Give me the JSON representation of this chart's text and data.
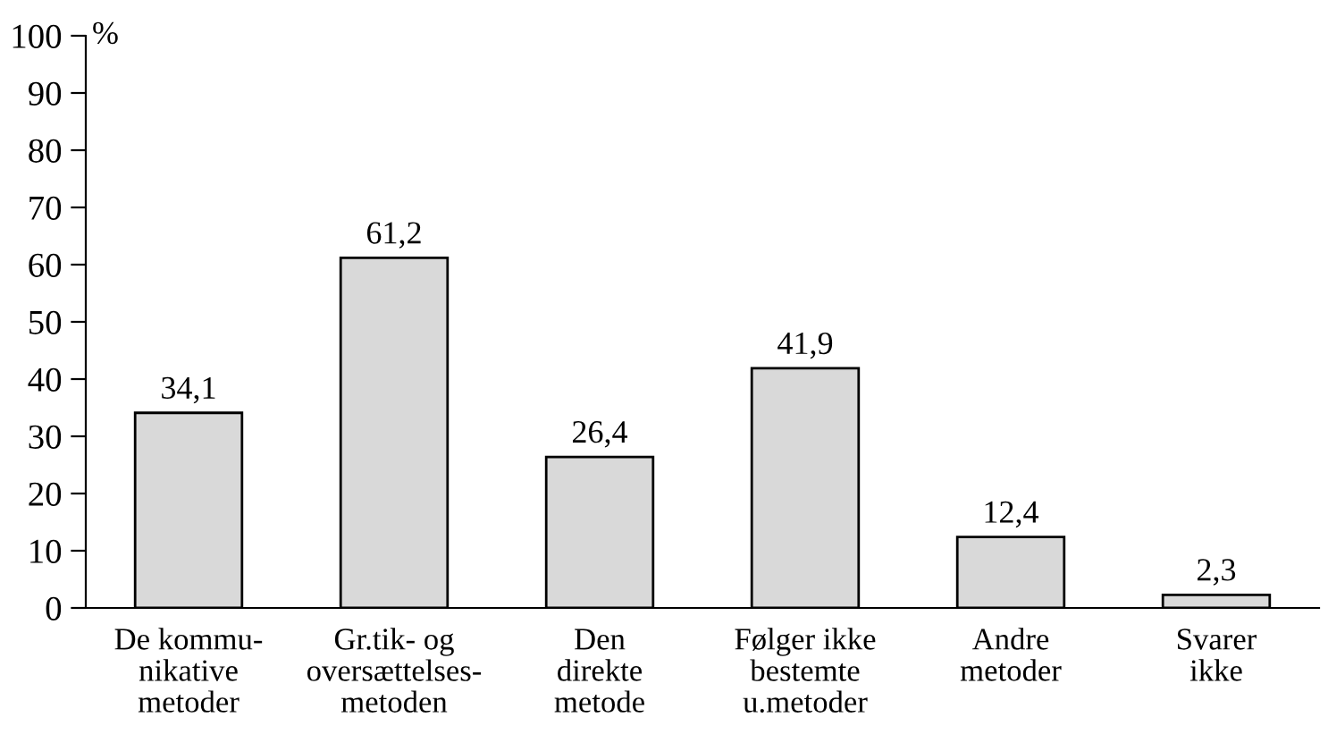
{
  "chart_data": {
    "type": "bar",
    "ylabel": "%",
    "categories": [
      "De kommu-\nnikative\nmetoder",
      "Gr.tik- og\noversættelses-\nmetoden",
      "Den\ndirekte\nmetode",
      "Følger ikke\nbestemte\nu.metoder",
      "Andre\nmetoder",
      "Svarer\nikke"
    ],
    "values": [
      34.1,
      61.2,
      26.4,
      41.9,
      12.4,
      2.3
    ],
    "value_labels": [
      "34,1",
      "61,2",
      "26,4",
      "41,9",
      "12,4",
      "2,3"
    ],
    "color": "#d9d9d9",
    "ylim": [
      0,
      100
    ],
    "yticks": [
      0,
      10,
      20,
      30,
      40,
      50,
      60,
      70,
      80,
      90,
      100
    ],
    "grid": false,
    "legend": false
  }
}
